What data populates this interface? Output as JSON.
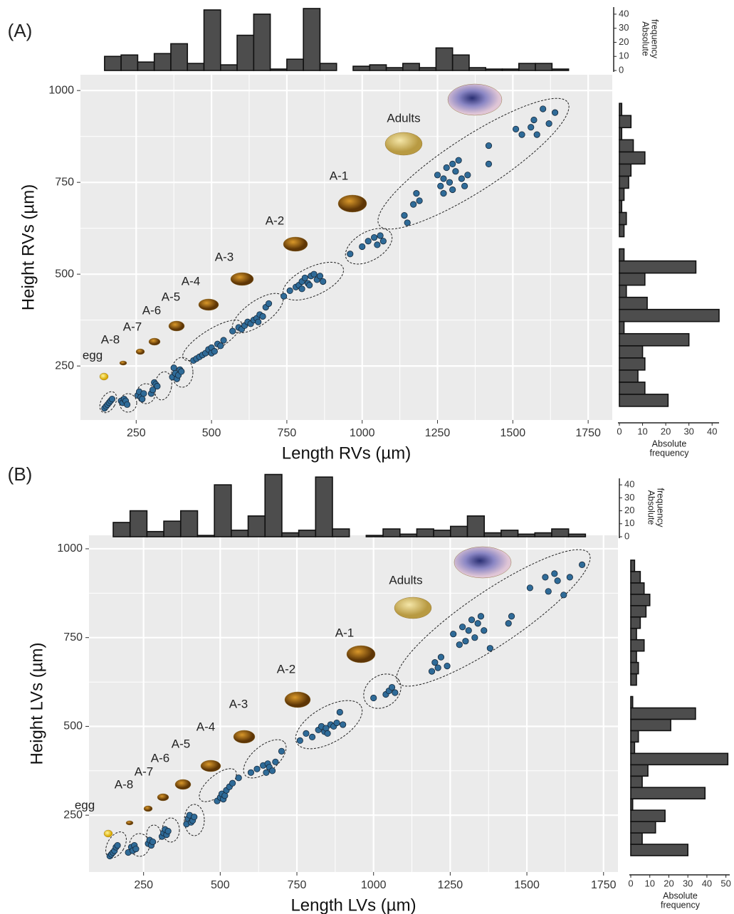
{
  "chart_data": [
    {
      "type": "scatter",
      "panel_label": "(A)",
      "x_label": "Length RVs  (µm)",
      "y_label": "Height RVs (µm)",
      "xlim": [
        65,
        1830
      ],
      "ylim": [
        103,
        1043
      ],
      "xticks": [
        250,
        500,
        750,
        1000,
        1250,
        1500,
        1750
      ],
      "yticks": [
        250,
        500,
        750,
        1000
      ],
      "grid": true,
      "color": "#2f6b98",
      "annotations": [
        "egg",
        "A-8",
        "A-7",
        "A-6",
        "A-5",
        "A-4",
        "A-3",
        "A-2",
        "A-1",
        "Adults"
      ],
      "x": [
        145,
        150,
        155,
        160,
        165,
        170,
        200,
        205,
        210,
        215,
        220,
        255,
        260,
        265,
        270,
        275,
        300,
        305,
        310,
        315,
        320,
        370,
        375,
        380,
        385,
        390,
        395,
        400,
        440,
        450,
        460,
        470,
        480,
        490,
        500,
        500,
        510,
        520,
        530,
        540,
        570,
        590,
        600,
        610,
        620,
        630,
        640,
        650,
        655,
        660,
        670,
        680,
        690,
        740,
        760,
        780,
        790,
        800,
        800,
        810,
        820,
        825,
        830,
        840,
        850,
        860,
        870,
        960,
        1000,
        1020,
        1040,
        1050,
        1060,
        1070,
        1140,
        1150,
        1170,
        1180,
        1190,
        1250,
        1260,
        1270,
        1270,
        1280,
        1290,
        1300,
        1300,
        1310,
        1320,
        1330,
        1340,
        1350,
        1420,
        1420,
        1510,
        1530,
        1560,
        1570,
        1580,
        1600,
        1620,
        1640
      ],
      "y": [
        135,
        140,
        145,
        150,
        155,
        160,
        155,
        150,
        160,
        155,
        145,
        170,
        180,
        165,
        160,
        175,
        175,
        185,
        205,
        200,
        195,
        220,
        245,
        230,
        215,
        225,
        240,
        235,
        265,
        270,
        275,
        280,
        285,
        295,
        300,
        285,
        290,
        310,
        305,
        320,
        345,
        355,
        350,
        360,
        370,
        365,
        375,
        380,
        370,
        390,
        385,
        410,
        420,
        440,
        455,
        465,
        470,
        480,
        460,
        490,
        475,
        470,
        495,
        500,
        485,
        495,
        480,
        555,
        575,
        590,
        600,
        580,
        605,
        590,
        660,
        640,
        690,
        720,
        700,
        770,
        740,
        760,
        720,
        790,
        750,
        800,
        730,
        780,
        810,
        760,
        740,
        770,
        800,
        850,
        895,
        880,
        900,
        920,
        880,
        950,
        910,
        940
      ]
    },
    {
      "type": "histogram",
      "orientation": "vertical",
      "color": "#4d4d4d",
      "y_label": [
        "Absolute",
        "frequency"
      ],
      "ylim": [
        0,
        45
      ],
      "yticks": [
        0,
        10,
        20,
        30,
        40
      ],
      "bins": [
        145,
        200,
        255,
        310,
        365,
        420,
        475,
        530,
        585,
        640,
        695,
        750,
        805,
        860,
        915,
        970,
        1025,
        1080,
        1135,
        1190,
        1245,
        1300,
        1355,
        1410,
        1465,
        1520,
        1575,
        1630,
        1685
      ],
      "counts": [
        10,
        11,
        6,
        12,
        19,
        5,
        43,
        4,
        25,
        40,
        1,
        8,
        44,
        5,
        0,
        3,
        4,
        2,
        5,
        2,
        16,
        11,
        2,
        1,
        1,
        5,
        5,
        1
      ]
    },
    {
      "type": "histogram",
      "orientation": "horizontal",
      "color": "#4d4d4d",
      "x_label": [
        "Absolute",
        "frequency"
      ],
      "xlim": [
        0,
        43
      ],
      "xticks": [
        0,
        10,
        20,
        30,
        40
      ],
      "bins": [
        140,
        173,
        206,
        239,
        272,
        305,
        338,
        371,
        404,
        437,
        470,
        503,
        536,
        569,
        602,
        635,
        668,
        701,
        734,
        767,
        800,
        833,
        866,
        899,
        932,
        965
      ],
      "counts": [
        21,
        11,
        8,
        11,
        10,
        30,
        2,
        43,
        12,
        3,
        11,
        33,
        2,
        0,
        2,
        3,
        1,
        2,
        4,
        5,
        11,
        6,
        1,
        5,
        1
      ]
    },
    {
      "type": "scatter",
      "panel_label": "(B)",
      "x_label": "Length LVs (µm)",
      "y_label": "Height LVs (µm)",
      "xlim": [
        72,
        1797
      ],
      "ylim": [
        90,
        1038
      ],
      "xticks": [
        250,
        500,
        750,
        1000,
        1250,
        1500,
        1750
      ],
      "yticks": [
        250,
        500,
        750,
        1000
      ],
      "grid": true,
      "color": "#2f6b98",
      "annotations": [
        "egg",
        "A-8",
        "A-7",
        "A-6",
        "A-5",
        "A-4",
        "A-3",
        "A-2",
        "A-1",
        "Adults"
      ],
      "x": [
        140,
        145,
        150,
        155,
        160,
        165,
        200,
        210,
        215,
        220,
        225,
        265,
        270,
        275,
        280,
        310,
        315,
        320,
        325,
        330,
        390,
        395,
        400,
        405,
        410,
        415,
        490,
        500,
        505,
        510,
        515,
        520,
        530,
        540,
        560,
        600,
        620,
        640,
        650,
        655,
        660,
        670,
        680,
        700,
        760,
        780,
        800,
        820,
        830,
        840,
        845,
        850,
        860,
        870,
        880,
        890,
        900,
        1000,
        1040,
        1050,
        1060,
        1070,
        1190,
        1200,
        1210,
        1220,
        1240,
        1260,
        1280,
        1290,
        1300,
        1310,
        1320,
        1330,
        1340,
        1350,
        1360,
        1380,
        1440,
        1450,
        1510,
        1560,
        1570,
        1590,
        1600,
        1620,
        1640,
        1680
      ],
      "y": [
        135,
        140,
        145,
        150,
        160,
        165,
        145,
        160,
        150,
        165,
        155,
        170,
        180,
        165,
        175,
        190,
        200,
        210,
        195,
        205,
        225,
        240,
        250,
        230,
        235,
        245,
        290,
        300,
        310,
        295,
        305,
        320,
        330,
        340,
        355,
        370,
        380,
        390,
        370,
        395,
        385,
        375,
        400,
        430,
        460,
        480,
        470,
        490,
        500,
        485,
        495,
        480,
        505,
        500,
        510,
        540,
        505,
        580,
        590,
        600,
        610,
        595,
        655,
        680,
        665,
        695,
        670,
        760,
        730,
        780,
        740,
        770,
        800,
        750,
        790,
        810,
        770,
        720,
        790,
        810,
        890,
        920,
        880,
        930,
        910,
        870,
        920,
        955
      ]
    },
    {
      "type": "histogram",
      "orientation": "vertical",
      "color": "#4d4d4d",
      "y_label": [
        "Absolute",
        "frequency"
      ],
      "ylim": [
        0,
        45
      ],
      "yticks": [
        0,
        10,
        20,
        30,
        40
      ],
      "bins": [
        151,
        206,
        261,
        316,
        371,
        426,
        481,
        536,
        591,
        646,
        701,
        756,
        811,
        866,
        921,
        976,
        1031,
        1086,
        1141,
        1196,
        1251,
        1306,
        1361,
        1416,
        1471,
        1526,
        1581,
        1636,
        1691
      ],
      "counts": [
        11,
        20,
        4,
        12,
        20,
        1,
        40,
        5,
        16,
        48,
        3,
        5,
        46,
        6,
        0,
        1,
        6,
        2,
        6,
        5,
        8,
        16,
        3,
        5,
        2,
        3,
        6,
        2
      ]
    },
    {
      "type": "histogram",
      "orientation": "horizontal",
      "color": "#4d4d4d",
      "x_label": [
        "Absolute",
        "frequency"
      ],
      "xlim": [
        0,
        52
      ],
      "xticks": [
        0,
        10,
        20,
        30,
        40,
        50
      ],
      "bins": [
        136,
        168,
        200,
        232,
        264,
        296,
        328,
        360,
        392,
        424,
        456,
        488,
        520,
        552,
        584,
        616,
        648,
        680,
        712,
        744,
        776,
        808,
        840,
        872,
        904,
        936,
        968
      ],
      "counts": [
        30,
        6,
        13,
        18,
        1,
        39,
        6,
        9,
        51,
        2,
        4,
        21,
        34,
        1,
        0,
        3,
        4,
        3,
        7,
        3,
        5,
        8,
        10,
        7,
        5,
        2
      ]
    }
  ]
}
